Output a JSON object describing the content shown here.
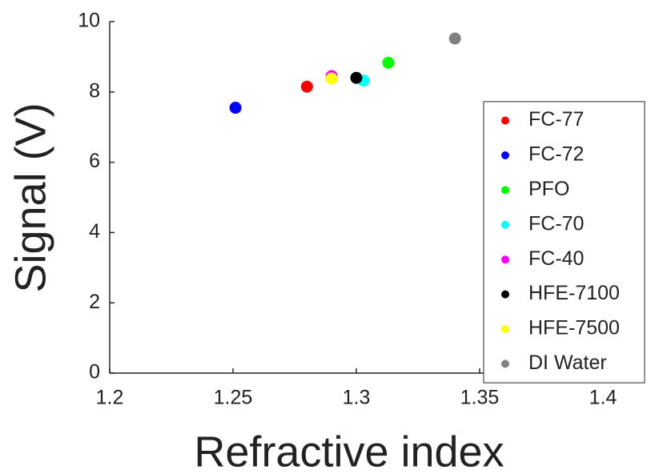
{
  "chart_data": {
    "type": "scatter",
    "xlabel": "Refractive index",
    "ylabel": "Signal (V)",
    "xlim": [
      1.2,
      1.4
    ],
    "xticks": [
      1.2,
      1.25,
      1.3,
      1.35,
      1.4
    ],
    "ylim": [
      0,
      10
    ],
    "yticks": [
      0,
      2,
      4,
      6,
      8,
      10
    ],
    "legend": "east",
    "grid": false,
    "series": [
      {
        "name": "FC-77",
        "color": "#ff0000",
        "x": [
          1.28
        ],
        "values": [
          8.15
        ]
      },
      {
        "name": "FC-72",
        "color": "#0000ff",
        "x": [
          1.251
        ],
        "values": [
          7.55
        ]
      },
      {
        "name": "PFO",
        "color": "#00ff00",
        "x": [
          1.313
        ],
        "values": [
          8.83
        ]
      },
      {
        "name": "FC-70",
        "color": "#00ffff",
        "x": [
          1.303
        ],
        "values": [
          8.32
        ]
      },
      {
        "name": "FC-40",
        "color": "#ff00ff",
        "x": [
          1.29
        ],
        "values": [
          8.45
        ]
      },
      {
        "name": "HFE-7100",
        "color": "#000000",
        "x": [
          1.3
        ],
        "values": [
          8.4
        ]
      },
      {
        "name": "HFE-7500",
        "color": "#ffff00",
        "x": [
          1.29
        ],
        "values": [
          8.38
        ]
      },
      {
        "name": "DI Water",
        "color": "#808080",
        "x": [
          1.34
        ],
        "values": [
          9.52
        ]
      }
    ]
  }
}
